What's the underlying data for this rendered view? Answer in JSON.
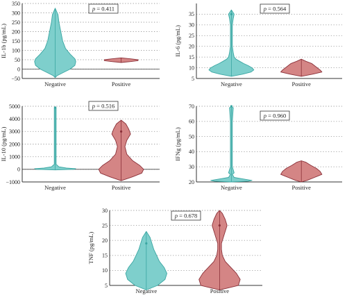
{
  "colors": {
    "negative_fill": "#7ecfcc",
    "negative_stroke": "#3aa6a2",
    "positive_fill": "#d48585",
    "positive_stroke": "#8a3038",
    "grid": "#9a9a9a",
    "axis": "#333333"
  },
  "chart_data": [
    {
      "type": "violin",
      "ylabel": "IL-1b (pg/mL)",
      "ylim": [
        -50,
        350
      ],
      "yticks": [
        -50,
        0,
        50,
        100,
        150,
        200,
        250,
        300,
        350
      ],
      "ytick_labels": [
        "−50",
        "0",
        "50",
        "100",
        "150",
        "200",
        "250",
        "300",
        "350"
      ],
      "zero_line": true,
      "pvalue": "p = 0.411",
      "categories": [
        "Negative",
        "Positive"
      ],
      "series": [
        {
          "category": "Negative",
          "min": -45,
          "max": 325,
          "median": 30,
          "density": [
            [
              -45,
              0
            ],
            [
              -35,
              2
            ],
            [
              -20,
              8
            ],
            [
              0,
              16
            ],
            [
              20,
              21
            ],
            [
              40,
              22
            ],
            [
              55,
              21
            ],
            [
              80,
              16
            ],
            [
              110,
              11
            ],
            [
              150,
              8
            ],
            [
              200,
              6
            ],
            [
              250,
              4
            ],
            [
              290,
              3
            ],
            [
              325,
              0
            ]
          ]
        },
        {
          "category": "Positive",
          "min": 35,
          "max": 60,
          "median": 48,
          "density": [
            [
              35,
              0
            ],
            [
              40,
              10
            ],
            [
              45,
              18
            ],
            [
              50,
              18
            ],
            [
              55,
              10
            ],
            [
              60,
              0
            ]
          ]
        }
      ]
    },
    {
      "type": "violin",
      "ylabel": "IL-6 (pg/mL)",
      "ylim": [
        5,
        40
      ],
      "yticks": [
        5,
        10,
        15,
        20,
        25,
        30,
        35
      ],
      "ytick_labels": [
        "5",
        "10",
        "15",
        "20",
        "25",
        "30",
        "35"
      ],
      "zero_line": false,
      "pvalue": "p = 0.564",
      "categories": [
        "Negative",
        "Positive"
      ],
      "series": [
        {
          "category": "Negative",
          "min": 6,
          "max": 37,
          "median": 9,
          "outlier": 35,
          "density": [
            [
              6,
              0
            ],
            [
              7,
              12
            ],
            [
              8,
              21
            ],
            [
              9,
              24
            ],
            [
              10,
              22
            ],
            [
              11,
              18
            ],
            [
              12,
              13
            ],
            [
              13,
              9
            ],
            [
              14,
              5
            ],
            [
              15,
              3
            ],
            [
              17,
              2
            ],
            [
              20,
              1
            ],
            [
              25,
              1
            ],
            [
              30,
              1
            ],
            [
              33,
              2
            ],
            [
              35,
              3
            ],
            [
              37,
              0
            ]
          ]
        },
        {
          "category": "Positive",
          "min": 6,
          "max": 14,
          "median": 8,
          "density": [
            [
              6,
              0
            ],
            [
              7,
              12
            ],
            [
              8,
              22
            ],
            [
              9,
              20
            ],
            [
              10,
              17
            ],
            [
              11,
              14
            ],
            [
              12,
              11
            ],
            [
              13,
              5
            ],
            [
              14,
              0
            ]
          ]
        }
      ]
    },
    {
      "type": "violin",
      "ylabel": "IL-10 (pg/mL)",
      "ylim": [
        -1000,
        5000
      ],
      "yticks": [
        -1000,
        0,
        1000,
        2000,
        3000,
        4000,
        5000
      ],
      "ytick_labels": [
        "−1000",
        "0",
        "1000",
        "2000",
        "3000",
        "4000",
        "5000"
      ],
      "zero_line": true,
      "pvalue": "p = 0.516",
      "categories": [
        "Negative",
        "Positive"
      ],
      "series": [
        {
          "category": "Negative",
          "min": -50,
          "max": 4900,
          "median": 20,
          "outlier": 4900,
          "density": [
            [
              -50,
              0
            ],
            [
              0,
              20
            ],
            [
              50,
              22
            ],
            [
              100,
              12
            ],
            [
              200,
              4
            ],
            [
              400,
              1
            ],
            [
              1000,
              1
            ],
            [
              2000,
              1
            ],
            [
              3000,
              1
            ],
            [
              4000,
              1
            ],
            [
              4900,
              1
            ]
          ]
        },
        {
          "category": "Positive",
          "min": -900,
          "max": 3900,
          "median": 200,
          "outlier": 3000,
          "density": [
            [
              -900,
              0
            ],
            [
              -600,
              12
            ],
            [
              -300,
              22
            ],
            [
              0,
              24
            ],
            [
              300,
              20
            ],
            [
              700,
              12
            ],
            [
              1200,
              6
            ],
            [
              1800,
              4
            ],
            [
              2300,
              6
            ],
            [
              2800,
              10
            ],
            [
              3200,
              8
            ],
            [
              3600,
              5
            ],
            [
              3900,
              0
            ]
          ]
        }
      ]
    },
    {
      "type": "violin",
      "ylabel": "IFNg (pg/mL)",
      "ylim": [
        20,
        70
      ],
      "yticks": [
        20,
        30,
        40,
        50,
        60,
        70
      ],
      "ytick_labels": [
        "20",
        "30",
        "40",
        "50",
        "60",
        "70"
      ],
      "zero_line": false,
      "pvalue": "p = 0.960",
      "categories": [
        "Negative",
        "Positive"
      ],
      "series": [
        {
          "category": "Negative",
          "min": 20,
          "max": 70,
          "median": 21,
          "outlier": 70,
          "density": [
            [
              20,
              0
            ],
            [
              20.5,
              18
            ],
            [
              21,
              22
            ],
            [
              22,
              12
            ],
            [
              23,
              3
            ],
            [
              25,
              1
            ],
            [
              26,
              3
            ],
            [
              30,
              1
            ],
            [
              40,
              1
            ],
            [
              50,
              1
            ],
            [
              60,
              1
            ],
            [
              69,
              2
            ],
            [
              70,
              0
            ]
          ]
        },
        {
          "category": "Positive",
          "min": 20,
          "max": 34,
          "median": 25,
          "density": [
            [
              20,
              0
            ],
            [
              21,
              6
            ],
            [
              23,
              14
            ],
            [
              25,
              22
            ],
            [
              27,
              20
            ],
            [
              29,
              16
            ],
            [
              31,
              10
            ],
            [
              33,
              5
            ],
            [
              34,
              0
            ]
          ]
        }
      ]
    },
    {
      "type": "violin",
      "ylabel": "TNF (pg/mL)",
      "ylim": [
        5,
        30
      ],
      "yticks": [
        5,
        10,
        15,
        20,
        25,
        30
      ],
      "ytick_labels": [
        "5",
        "10",
        "15",
        "20",
        "25",
        "30"
      ],
      "zero_line": false,
      "pvalue": "p = 0.678",
      "categories": [
        "Negative",
        "Positive"
      ],
      "series": [
        {
          "category": "Negative",
          "min": 3.5,
          "max": 23,
          "median": 9,
          "outlier": 19,
          "density": [
            [
              3.5,
              0
            ],
            [
              5,
              12
            ],
            [
              7,
              20
            ],
            [
              9,
              22
            ],
            [
              11,
              19
            ],
            [
              13,
              14
            ],
            [
              15,
              11
            ],
            [
              17,
              8
            ],
            [
              19,
              6
            ],
            [
              21,
              4
            ],
            [
              23,
              0
            ]
          ]
        },
        {
          "category": "Positive",
          "min": 3.5,
          "max": 30,
          "median": 7,
          "outlier": 25,
          "density": [
            [
              3.5,
              0
            ],
            [
              5,
              20
            ],
            [
              7,
              22
            ],
            [
              9,
              18
            ],
            [
              11,
              12
            ],
            [
              13,
              6
            ],
            [
              15,
              3
            ],
            [
              17,
              2
            ],
            [
              19,
              2
            ],
            [
              21,
              4
            ],
            [
              23,
              6
            ],
            [
              25,
              8
            ],
            [
              27,
              6
            ],
            [
              29,
              3
            ],
            [
              30,
              0
            ]
          ]
        }
      ]
    }
  ]
}
